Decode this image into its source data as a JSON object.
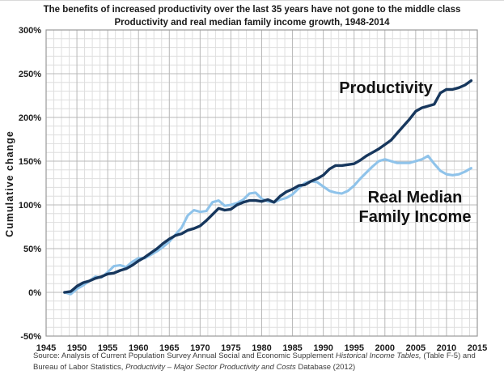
{
  "figure": {
    "title_line1": "The benefits of increased productivity over the last 35 years have not gone to the middle class",
    "title_line2": "Productivity and real median family income growth, 1948-2014",
    "y_axis_title": "Cumulative change",
    "annotations": {
      "productivity_label": "Productivity",
      "income_label_line1": "Real Median",
      "income_label_line2": "Family Income"
    },
    "source": {
      "line1_regular": "Source:  Analysis of Current Population Survey Annual Social and Economic Supplement ",
      "line1_italic": "Historical Income Tables, ",
      "line1_suffix": "(Table F-5) and",
      "line2_regular": "Bureau of Labor Statistics, ",
      "line2_italic": "Productivity – Major Sector Productivity and Costs ",
      "line2_suffix": "Database (2012)"
    }
  },
  "chart_data": {
    "type": "line",
    "title": "The benefits of increased productivity over the last 35 years have not gone to the middle class",
    "subtitle": "Productivity and real median family income growth, 1948-2014",
    "xlabel": "",
    "ylabel": "Cumulative change",
    "x_range": [
      1945,
      2015
    ],
    "y_range": [
      -50,
      300
    ],
    "x_ticks": [
      "1945",
      "1950",
      "1955",
      "1960",
      "1965",
      "1970",
      "1975",
      "1980",
      "1985",
      "1990",
      "1995",
      "2000",
      "2005",
      "2010",
      "2015"
    ],
    "y_ticks": [
      "300%",
      "250%",
      "200%",
      "150%",
      "100%",
      "50%",
      "0%",
      "-50%"
    ],
    "grid": "minor and major gridlines on, gray",
    "legend_position": "in-plot text annotations",
    "units": "percent cumulative change since 1948",
    "years": [
      1948,
      1949,
      1950,
      1951,
      1952,
      1953,
      1954,
      1955,
      1956,
      1957,
      1958,
      1959,
      1960,
      1961,
      1962,
      1963,
      1964,
      1965,
      1966,
      1967,
      1968,
      1969,
      1970,
      1971,
      1972,
      1973,
      1974,
      1975,
      1976,
      1977,
      1978,
      1979,
      1980,
      1981,
      1982,
      1983,
      1984,
      1985,
      1986,
      1987,
      1988,
      1989,
      1990,
      1991,
      1992,
      1993,
      1994,
      1995,
      1996,
      1997,
      1998,
      1999,
      2000,
      2001,
      2002,
      2003,
      2004,
      2005,
      2006,
      2007,
      2008,
      2009,
      2010,
      2011,
      2012,
      2013,
      2014
    ],
    "series": [
      {
        "name": "Productivity",
        "color": "#17375d",
        "stroke_width": 3.4,
        "values": [
          0,
          1,
          7,
          11,
          13,
          16,
          18,
          21,
          22,
          25,
          27,
          31,
          36,
          40,
          45,
          50,
          56,
          61,
          65,
          67,
          71,
          73,
          76,
          82,
          89,
          96,
          94,
          95,
          100,
          103,
          105,
          105,
          104,
          106,
          103,
          110,
          115,
          118,
          122,
          123,
          127,
          130,
          134,
          141,
          145,
          145,
          146,
          147,
          151,
          156,
          160,
          164,
          169,
          174,
          182,
          190,
          198,
          207,
          211,
          213,
          215,
          228,
          232,
          232,
          234,
          237,
          242
        ]
      },
      {
        "name": "Real Median Family Income",
        "color": "#8fc3ea",
        "stroke_width": 3.1,
        "values": [
          0,
          -2,
          4,
          8,
          13,
          18,
          17,
          23,
          30,
          31,
          29,
          35,
          39,
          39,
          43,
          47,
          52,
          58,
          66,
          74,
          88,
          94,
          92,
          93,
          103,
          105,
          99,
          100,
          102,
          106,
          113,
          114,
          107,
          104,
          103,
          106,
          108,
          112,
          119,
          125,
          127,
          126,
          121,
          116,
          114,
          113,
          116,
          122,
          130,
          137,
          144,
          150,
          152,
          150,
          148,
          148,
          148,
          150,
          152,
          156,
          147,
          139,
          135,
          134,
          135,
          138,
          142
        ]
      }
    ],
    "colors": {
      "grid_minor": "#dedede",
      "grid_major": "#b8b8b8",
      "plot_border": "#999999",
      "productivity_line": "#17375d",
      "income_line": "#8fc3ea"
    }
  }
}
